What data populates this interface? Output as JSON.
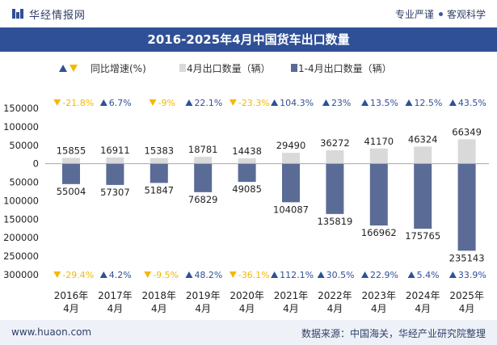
{
  "header": {
    "brand": "华经情报网",
    "slogan_left": "专业严谨",
    "slogan_right": "客观科学"
  },
  "title": "2016-2025年4月中国货车出口数量",
  "legend": {
    "growth": "同比增速(%)",
    "april": "4月出口数量（辆）",
    "cumulative": "1-4月出口数量（辆）"
  },
  "footer": {
    "url": "www.huaon.com",
    "source": "数据来源：中国海关，华经产业研究院整理"
  },
  "colors": {
    "up": "#2f5096",
    "down": "#f5b800",
    "april_bar": "#d9d9d9",
    "cumulative_bar": "#5a6b96"
  },
  "chart_data": {
    "type": "bar",
    "categories": [
      "2016年\n4月",
      "2017年\n4月",
      "2018年\n4月",
      "2019年\n4月",
      "2020年\n4月",
      "2021年\n4月",
      "2022年\n4月",
      "2023年\n4月",
      "2024年\n4月",
      "2025年\n4月"
    ],
    "series": [
      {
        "name": "4月出口数量（辆）",
        "values": [
          15855,
          16911,
          15383,
          18781,
          14438,
          29490,
          36272,
          41170,
          46324,
          66349
        ]
      },
      {
        "name": "1-4月出口数量（辆）",
        "values": [
          -55004,
          -57307,
          -51847,
          -76829,
          -49085,
          -104087,
          -135819,
          -166962,
          -175765,
          -235143
        ]
      }
    ],
    "value_labels_april": [
      "15855",
      "16911",
      "15383",
      "18781",
      "14438",
      "29490",
      "36272",
      "41170",
      "46324",
      "66349"
    ],
    "value_labels_cumulative": [
      "55004",
      "57307",
      "51847",
      "76829",
      "49085",
      "104087",
      "135819",
      "166962",
      "175765",
      "235143"
    ],
    "growth_april": [
      -21.8,
      6.7,
      -9,
      22.1,
      -23.3,
      104.3,
      23,
      13.5,
      12.5,
      43.5
    ],
    "growth_april_labels": [
      "-21.8%",
      "6.7%",
      "-9%",
      "22.1%",
      "-23.3%",
      "104.3%",
      "23%",
      "13.5%",
      "12.5%",
      "43.5%"
    ],
    "growth_cumulative": [
      -29.4,
      4.2,
      -9.5,
      48.2,
      -36.1,
      112.1,
      30.5,
      22.9,
      5.4,
      33.9
    ],
    "growth_cumulative_labels": [
      "-29.4%",
      "4.2%",
      "-9.5%",
      "48.2%",
      "-36.1%",
      "112.1%",
      "30.5%",
      "22.9%",
      "5.4%",
      "33.9%"
    ],
    "ylim": [
      -300000,
      150000
    ],
    "yticks": [
      150000,
      100000,
      50000,
      0,
      -50000,
      -100000,
      -150000,
      -200000,
      -250000,
      -300000
    ],
    "ytick_labels": [
      "150000",
      "100000",
      "50000",
      "0",
      "50000",
      "100000",
      "150000",
      "200000",
      "250000",
      "300000"
    ],
    "grid": false,
    "legend_position": "top"
  }
}
